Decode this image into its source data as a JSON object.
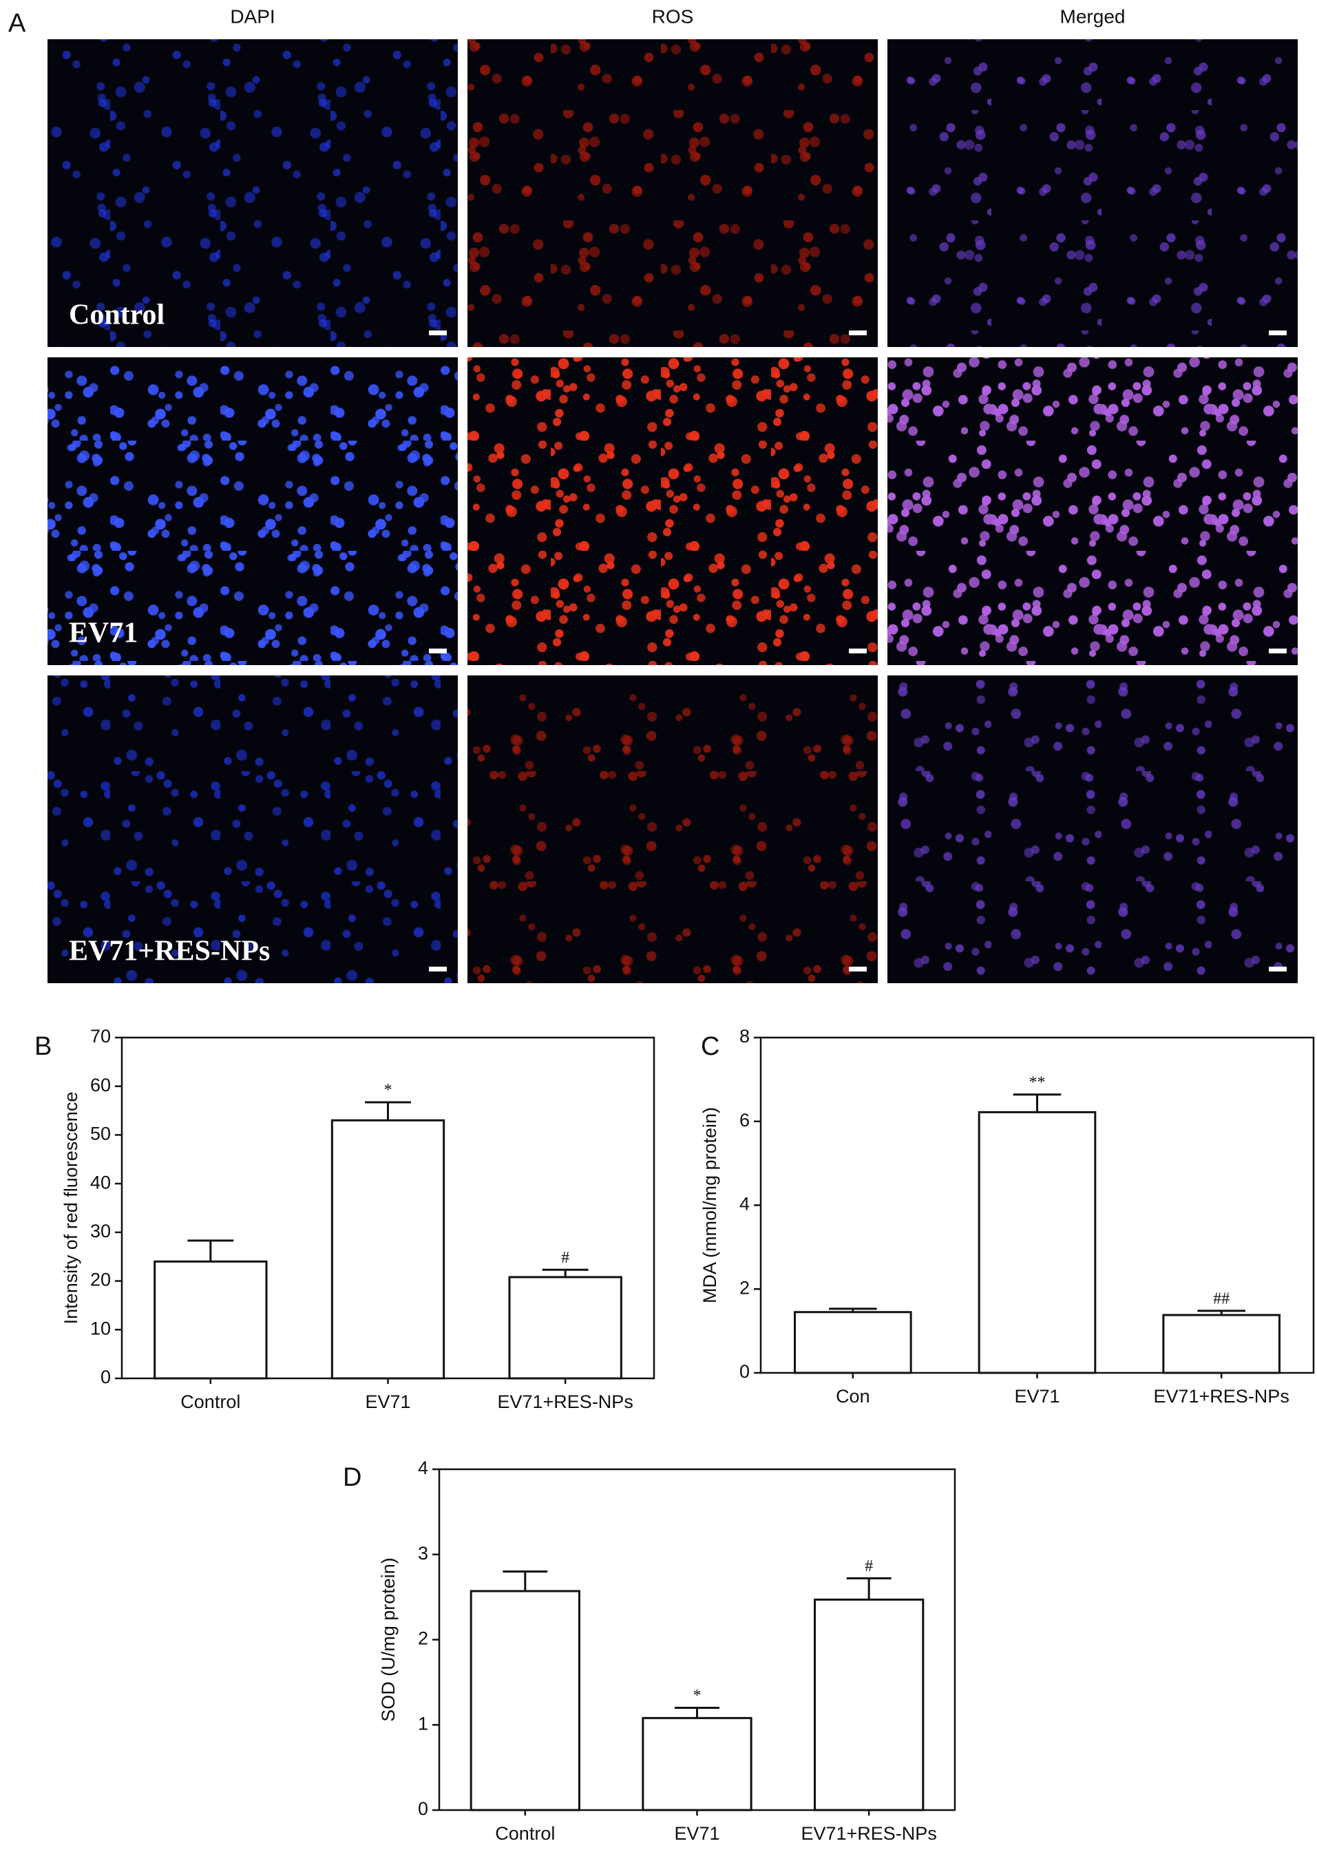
{
  "panel_a": {
    "panel_label": "A",
    "columns": [
      "DAPI",
      "ROS",
      "Merged"
    ],
    "rows": [
      "Control",
      "EV71",
      "EV71+RES-NPs"
    ]
  },
  "chart_data": [
    {
      "type": "bar",
      "panel_label": "B",
      "ylabel": "Intensity of red fluorescence",
      "categories": [
        "Control",
        "EV71",
        "EV71+RES-NPs"
      ],
      "values": [
        24,
        53,
        20.8
      ],
      "errors": [
        4.3,
        3.7,
        1.5
      ],
      "annotations": [
        null,
        "*",
        "#"
      ],
      "color": "#ffffff",
      "ylim": [
        0,
        70
      ],
      "yticks": [
        0,
        10,
        20,
        30,
        40,
        50,
        60,
        70
      ]
    },
    {
      "type": "bar",
      "panel_label": "C",
      "ylabel": "MDA (mmol/mg protein)",
      "categories": [
        "Con",
        "EV71",
        "EV71+RES-NPs"
      ],
      "values": [
        1.45,
        6.22,
        1.38
      ],
      "errors": [
        0.08,
        0.42,
        0.1
      ],
      "annotations": [
        null,
        "**",
        "##"
      ],
      "color": "#ffffff",
      "ylim": [
        0,
        8
      ],
      "yticks": [
        0,
        2,
        4,
        6,
        8
      ]
    },
    {
      "type": "bar",
      "panel_label": "D",
      "ylabel": "SOD (U/mg protein)",
      "categories": [
        "Control",
        "EV71",
        "EV71+RES-NPs"
      ],
      "values": [
        2.57,
        1.08,
        2.47
      ],
      "errors": [
        0.23,
        0.12,
        0.25
      ],
      "annotations": [
        null,
        "*",
        "#"
      ],
      "color": "#ffffff",
      "ylim": [
        0,
        4
      ],
      "yticks": [
        0,
        1,
        2,
        3,
        4
      ]
    }
  ]
}
